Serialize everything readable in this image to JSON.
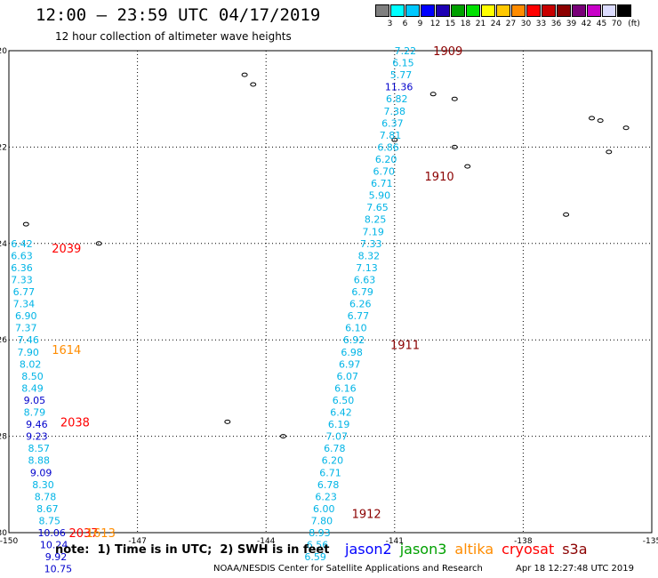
{
  "header": {
    "title": "12:00 – 23:59 UTC 04/17/2019",
    "subtitle": "12 hour collection of altimeter wave heights"
  },
  "colorbar": {
    "unit": "(ft)",
    "colors": [
      "#7f7f7f",
      "#00ffff",
      "#00c8ff",
      "#0000ff",
      "#1e00b4",
      "#00a000",
      "#00e100",
      "#ffff00",
      "#ffc800",
      "#ff8c00",
      "#ff0000",
      "#c80000",
      "#8c0000",
      "#780078",
      "#c800c8",
      "#dcdcff",
      "#000000"
    ],
    "labels": [
      "3",
      "6",
      "9",
      "12",
      "15",
      "18",
      "21",
      "24",
      "27",
      "30",
      "33",
      "36",
      "39",
      "42",
      "45",
      "70"
    ]
  },
  "map": {
    "lon_ticks": [
      "-150",
      "-147",
      "-144",
      "-141",
      "-138",
      "-135"
    ],
    "lat_ticks": [
      "-20",
      "-22",
      "-24",
      "-26",
      "-28",
      "-30"
    ],
    "label_colors": {
      "cyan": "#00b4e6",
      "blue": "#0000cc",
      "darkred": "#8b0000",
      "red": "#ff0000",
      "orange": "#ff8c00"
    },
    "track_labels": [
      {
        "text": "1909",
        "lon": -140.1,
        "lat": -20.0,
        "c": "darkred"
      },
      {
        "text": "1910",
        "lon": -140.3,
        "lat": -22.6,
        "c": "darkred"
      },
      {
        "text": "1911",
        "lon": -141.1,
        "lat": -26.1,
        "c": "darkred"
      },
      {
        "text": "1912",
        "lon": -142.0,
        "lat": -29.6,
        "c": "darkred"
      },
      {
        "text": "2039",
        "lon": -149.0,
        "lat": -24.1,
        "c": "red"
      },
      {
        "text": "2038",
        "lon": -148.8,
        "lat": -27.7,
        "c": "red"
      },
      {
        "text": "2037",
        "lon": -148.6,
        "lat": -30.0,
        "c": "red"
      },
      {
        "text": "1614",
        "lon": -149.0,
        "lat": -26.2,
        "c": "orange"
      },
      {
        "text": "1613",
        "lon": -148.2,
        "lat": -30.0,
        "c": "orange"
      }
    ],
    "track_1": [
      {
        "v": "7.22",
        "lon": -140.75,
        "lat": -20.0,
        "c": "cyan"
      },
      {
        "v": "6.15",
        "lon": -140.8,
        "lat": -20.25,
        "c": "cyan"
      },
      {
        "v": "5.77",
        "lon": -140.85,
        "lat": -20.5,
        "c": "cyan"
      },
      {
        "v": "11.36",
        "lon": -140.9,
        "lat": -20.75,
        "c": "blue"
      },
      {
        "v": "6.82",
        "lon": -140.95,
        "lat": -21.0,
        "c": "cyan"
      },
      {
        "v": "7.38",
        "lon": -141.0,
        "lat": -21.25,
        "c": "cyan"
      },
      {
        "v": "6.37",
        "lon": -141.05,
        "lat": -21.5,
        "c": "cyan"
      },
      {
        "v": "7.81",
        "lon": -141.1,
        "lat": -21.75,
        "c": "cyan"
      },
      {
        "v": "6.86",
        "lon": -141.15,
        "lat": -22.0,
        "c": "cyan"
      },
      {
        "v": "6.20",
        "lon": -141.2,
        "lat": -22.25,
        "c": "cyan"
      },
      {
        "v": "6.70",
        "lon": -141.25,
        "lat": -22.5,
        "c": "cyan"
      },
      {
        "v": "6.71",
        "lon": -141.3,
        "lat": -22.75,
        "c": "cyan"
      },
      {
        "v": "5.90",
        "lon": -141.35,
        "lat": -23.0,
        "c": "cyan"
      },
      {
        "v": "7.65",
        "lon": -141.4,
        "lat": -23.25,
        "c": "cyan"
      },
      {
        "v": "8.25",
        "lon": -141.45,
        "lat": -23.5,
        "c": "cyan"
      },
      {
        "v": "7.19",
        "lon": -141.5,
        "lat": -23.75,
        "c": "cyan"
      },
      {
        "v": "7.33",
        "lon": -141.55,
        "lat": -24.0,
        "c": "cyan"
      },
      {
        "v": "8.32",
        "lon": -141.6,
        "lat": -24.25,
        "c": "cyan"
      },
      {
        "v": "7.13",
        "lon": -141.65,
        "lat": -24.5,
        "c": "cyan"
      },
      {
        "v": "6.63",
        "lon": -141.7,
        "lat": -24.75,
        "c": "cyan"
      },
      {
        "v": "6.79",
        "lon": -141.75,
        "lat": -25.0,
        "c": "cyan"
      },
      {
        "v": "6.26",
        "lon": -141.8,
        "lat": -25.25,
        "c": "cyan"
      },
      {
        "v": "6.77",
        "lon": -141.85,
        "lat": -25.5,
        "c": "cyan"
      },
      {
        "v": "6.10",
        "lon": -141.9,
        "lat": -25.75,
        "c": "cyan"
      },
      {
        "v": "6.92",
        "lon": -141.95,
        "lat": -26.0,
        "c": "cyan"
      },
      {
        "v": "6.98",
        "lon": -142.0,
        "lat": -26.25,
        "c": "cyan"
      },
      {
        "v": "6.97",
        "lon": -142.05,
        "lat": -26.5,
        "c": "cyan"
      },
      {
        "v": "6.07",
        "lon": -142.1,
        "lat": -26.75,
        "c": "cyan"
      },
      {
        "v": "6.16",
        "lon": -142.15,
        "lat": -27.0,
        "c": "cyan"
      },
      {
        "v": "6.50",
        "lon": -142.2,
        "lat": -27.25,
        "c": "cyan"
      },
      {
        "v": "6.42",
        "lon": -142.25,
        "lat": -27.5,
        "c": "cyan"
      },
      {
        "v": "6.19",
        "lon": -142.3,
        "lat": -27.75,
        "c": "cyan"
      },
      {
        "v": "7.07",
        "lon": -142.35,
        "lat": -28.0,
        "c": "cyan"
      },
      {
        "v": "6.78",
        "lon": -142.4,
        "lat": -28.25,
        "c": "cyan"
      },
      {
        "v": "6.20",
        "lon": -142.45,
        "lat": -28.5,
        "c": "cyan"
      },
      {
        "v": "6.71",
        "lon": -142.5,
        "lat": -28.75,
        "c": "cyan"
      },
      {
        "v": "6.78",
        "lon": -142.55,
        "lat": -29.0,
        "c": "cyan"
      },
      {
        "v": "6.23",
        "lon": -142.6,
        "lat": -29.25,
        "c": "cyan"
      },
      {
        "v": "6.00",
        "lon": -142.65,
        "lat": -29.5,
        "c": "cyan"
      },
      {
        "v": "7.80",
        "lon": -142.7,
        "lat": -29.75,
        "c": "cyan"
      },
      {
        "v": "8.93",
        "lon": -142.75,
        "lat": -30.0,
        "c": "cyan"
      },
      {
        "v": "6.56",
        "lon": -142.8,
        "lat": -30.25,
        "c": "cyan"
      },
      {
        "v": "6.59",
        "lon": -142.85,
        "lat": -30.5,
        "c": "cyan"
      }
    ],
    "track_2": [
      {
        "v": "6.42",
        "lon": -149.7,
        "lat": -24.0,
        "c": "cyan"
      },
      {
        "v": "6.63",
        "lon": -149.7,
        "lat": -24.25,
        "c": "cyan"
      },
      {
        "v": "6.36",
        "lon": -149.7,
        "lat": -24.5,
        "c": "cyan"
      },
      {
        "v": "7.33",
        "lon": -149.7,
        "lat": -24.75,
        "c": "cyan"
      },
      {
        "v": "6.77",
        "lon": -149.65,
        "lat": -25.0,
        "c": "cyan"
      },
      {
        "v": "7.34",
        "lon": -149.65,
        "lat": -25.25,
        "c": "cyan"
      },
      {
        "v": "6.90",
        "lon": -149.6,
        "lat": -25.5,
        "c": "cyan"
      },
      {
        "v": "7.37",
        "lon": -149.6,
        "lat": -25.75,
        "c": "cyan"
      },
      {
        "v": "7.46",
        "lon": -149.55,
        "lat": -26.0,
        "c": "cyan"
      },
      {
        "v": "7.90",
        "lon": -149.55,
        "lat": -26.25,
        "c": "cyan"
      },
      {
        "v": "8.02",
        "lon": -149.5,
        "lat": -26.5,
        "c": "cyan"
      },
      {
        "v": "8.50",
        "lon": -149.45,
        "lat": -26.75,
        "c": "cyan"
      },
      {
        "v": "8.49",
        "lon": -149.45,
        "lat": -27.0,
        "c": "cyan"
      },
      {
        "v": "9.05",
        "lon": -149.4,
        "lat": -27.25,
        "c": "blue"
      },
      {
        "v": "8.79",
        "lon": -149.4,
        "lat": -27.5,
        "c": "cyan"
      },
      {
        "v": "9.46",
        "lon": -149.35,
        "lat": -27.75,
        "c": "blue"
      },
      {
        "v": "9.23",
        "lon": -149.35,
        "lat": -28.0,
        "c": "blue"
      },
      {
        "v": "8.57",
        "lon": -149.3,
        "lat": -28.25,
        "c": "cyan"
      },
      {
        "v": "8.88",
        "lon": -149.3,
        "lat": -28.5,
        "c": "cyan"
      },
      {
        "v": "9.09",
        "lon": -149.25,
        "lat": -28.75,
        "c": "blue"
      },
      {
        "v": "8.30",
        "lon": -149.2,
        "lat": -29.0,
        "c": "cyan"
      },
      {
        "v": "8.78",
        "lon": -149.15,
        "lat": -29.25,
        "c": "cyan"
      },
      {
        "v": "8.67",
        "lon": -149.1,
        "lat": -29.5,
        "c": "cyan"
      },
      {
        "v": "8.75",
        "lon": -149.05,
        "lat": -29.75,
        "c": "cyan"
      },
      {
        "v": "10.06",
        "lon": -149.0,
        "lat": -30.0,
        "c": "blue"
      },
      {
        "v": "10.24",
        "lon": -148.95,
        "lat": -30.25,
        "c": "blue"
      },
      {
        "v": "9.92",
        "lon": -148.9,
        "lat": -30.5,
        "c": "blue"
      },
      {
        "v": "10.75",
        "lon": -148.85,
        "lat": -30.75,
        "c": "blue"
      }
    ]
  },
  "note": "note:  1) Time is in UTC;  2) SWH is in feet",
  "legend": [
    {
      "name": "jason2",
      "color": "#0000ff"
    },
    {
      "name": "jason3",
      "color": "#00a000"
    },
    {
      "name": "altika",
      "color": "#ff8c00"
    },
    {
      "name": "cryosat",
      "color": "#ff0000"
    },
    {
      "name": "s3a",
      "color": "#8b0000"
    }
  ],
  "footer": "NOAA/NESDIS Center for Satellite Applications and Research",
  "footer_date": "Apr 18 12:27:48 UTC 2019"
}
